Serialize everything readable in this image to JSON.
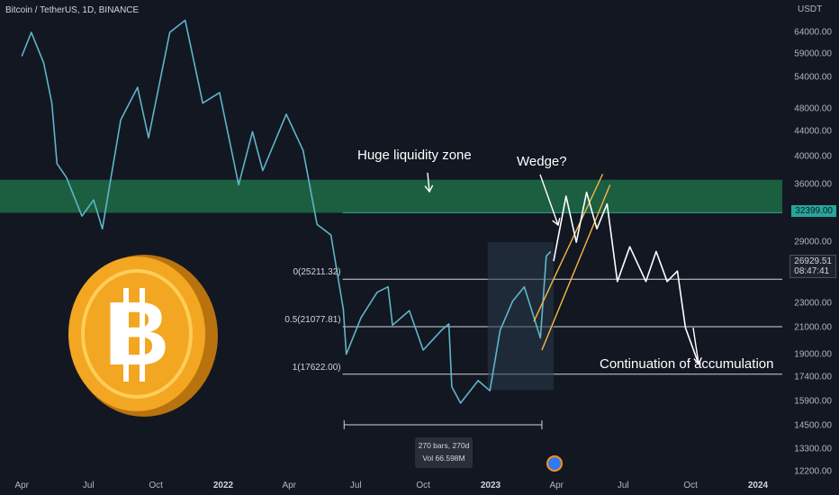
{
  "header": {
    "symbol": "Bitcoin / TetherUS, 1D, BINANCE"
  },
  "axis": {
    "unit": "USDT",
    "price_ticks": [
      "64000.00",
      "59000.00",
      "54000.00",
      "48000.00",
      "44000.00",
      "40000.00",
      "36000.00",
      "29000.00",
      "23000.00",
      "21000.00",
      "19000.00",
      "17400.00",
      "15900.00",
      "14500.00",
      "13300.00",
      "12200.00"
    ],
    "time_ticks": [
      {
        "label": "Apr",
        "bold": false
      },
      {
        "label": "Jul",
        "bold": false
      },
      {
        "label": "Oct",
        "bold": false
      },
      {
        "label": "2022",
        "bold": true
      },
      {
        "label": "Apr",
        "bold": false
      },
      {
        "label": "Jul",
        "bold": false
      },
      {
        "label": "Oct",
        "bold": false
      },
      {
        "label": "2023",
        "bold": true
      },
      {
        "label": "Apr",
        "bold": false
      },
      {
        "label": "Jul",
        "bold": false
      },
      {
        "label": "Oct",
        "bold": false
      },
      {
        "label": "2024",
        "bold": true
      }
    ]
  },
  "tags": {
    "level": "32399.00",
    "last_price": "26929.51",
    "countdown": "08:47:41"
  },
  "annotations": {
    "liquidity": "Huge liquidity zone",
    "wedge": "Wedge?",
    "continuation": "Continuation of accumulation"
  },
  "fib_levels": [
    {
      "label": "0(25211.32)",
      "price": 25211.32
    },
    {
      "label": "0.5(21077.81)",
      "price": 21077.81
    },
    {
      "label": "1(17622.00)",
      "price": 17622.0
    }
  ],
  "range_info": {
    "bars": "270 bars, 270d",
    "volume": "Vol 66.598M"
  },
  "colors": {
    "background": "#131722",
    "candle_line": "#5fb5c9",
    "liquidity_zone": "#1f6b45",
    "level_line": "#26a69a",
    "wedge_line": "#f5b942",
    "projection": "#ffffff"
  },
  "chart_data": {
    "type": "line",
    "title": "Bitcoin / TetherUS, 1D, BINANCE",
    "xlabel": "",
    "ylabel": "USDT",
    "scale": "log",
    "ylim": [
      12200,
      68000
    ],
    "x": [
      "2021-04-01",
      "2021-04-14",
      "2021-05-01",
      "2021-05-12",
      "2021-05-19",
      "2021-06-01",
      "2021-06-22",
      "2021-07-08",
      "2021-07-20",
      "2021-08-14",
      "2021-09-06",
      "2021-09-21",
      "2021-10-20",
      "2021-11-10",
      "2021-12-04",
      "2021-12-27",
      "2022-01-22",
      "2022-02-10",
      "2022-02-24",
      "2022-03-28",
      "2022-04-20",
      "2022-05-09",
      "2022-05-28",
      "2022-06-14",
      "2022-06-18",
      "2022-07-08",
      "2022-07-30",
      "2022-08-14",
      "2022-08-20",
      "2022-09-12",
      "2022-10-01",
      "2022-10-26",
      "2022-11-05",
      "2022-11-09",
      "2022-11-21",
      "2022-12-15",
      "2022-12-31",
      "2023-01-14",
      "2023-01-31",
      "2023-02-16",
      "2023-03-10",
      "2023-03-18",
      "2023-03-24"
    ],
    "series": [
      {
        "values": [
          58500,
          64000,
          57000,
          49000,
          39000,
          37000,
          32000,
          34000,
          30500,
          46000,
          52000,
          43000,
          64000,
          67000,
          49000,
          51000,
          36000,
          44000,
          38000,
          47000,
          41000,
          31000,
          29800,
          22500,
          19000,
          21800,
          24000,
          24500,
          21200,
          22400,
          19300,
          20800,
          21300,
          16800,
          15800,
          17200,
          16550,
          20800,
          23200,
          24500,
          20200,
          27500,
          28000
        ]
      }
    ],
    "projection": {
      "x": [
        "2023-03-28",
        "2023-04-14",
        "2023-04-28",
        "2023-05-12",
        "2023-05-26",
        "2023-06-09",
        "2023-06-23",
        "2023-07-10",
        "2023-08-01",
        "2023-08-15",
        "2023-08-30",
        "2023-09-13",
        "2023-09-24",
        "2023-10-12"
      ],
      "values": [
        27000,
        34500,
        29000,
        35000,
        30500,
        33500,
        25000,
        28500,
        25000,
        28000,
        25000,
        26000,
        21000,
        18300
      ]
    },
    "liquidity_zone": [
      32399,
      36700
    ],
    "horizontal_level": 32399,
    "fib_levels": [
      {
        "label": "0(25211.32)",
        "price": 25211.32
      },
      {
        "label": "0.5(21077.81)",
        "price": 21077.81
      },
      {
        "label": "1(17622.00)",
        "price": 17622.0
      }
    ],
    "wedge": {
      "upper": {
        "from": [
          "2023-03-01",
          21500
        ],
        "to": [
          "2023-06-03",
          37500
        ]
      },
      "lower": {
        "from": [
          "2023-03-12",
          19300
        ],
        "to": [
          "2023-06-13",
          36000
        ]
      }
    },
    "last_price": 26929.51,
    "grid": false,
    "legend": "none"
  }
}
